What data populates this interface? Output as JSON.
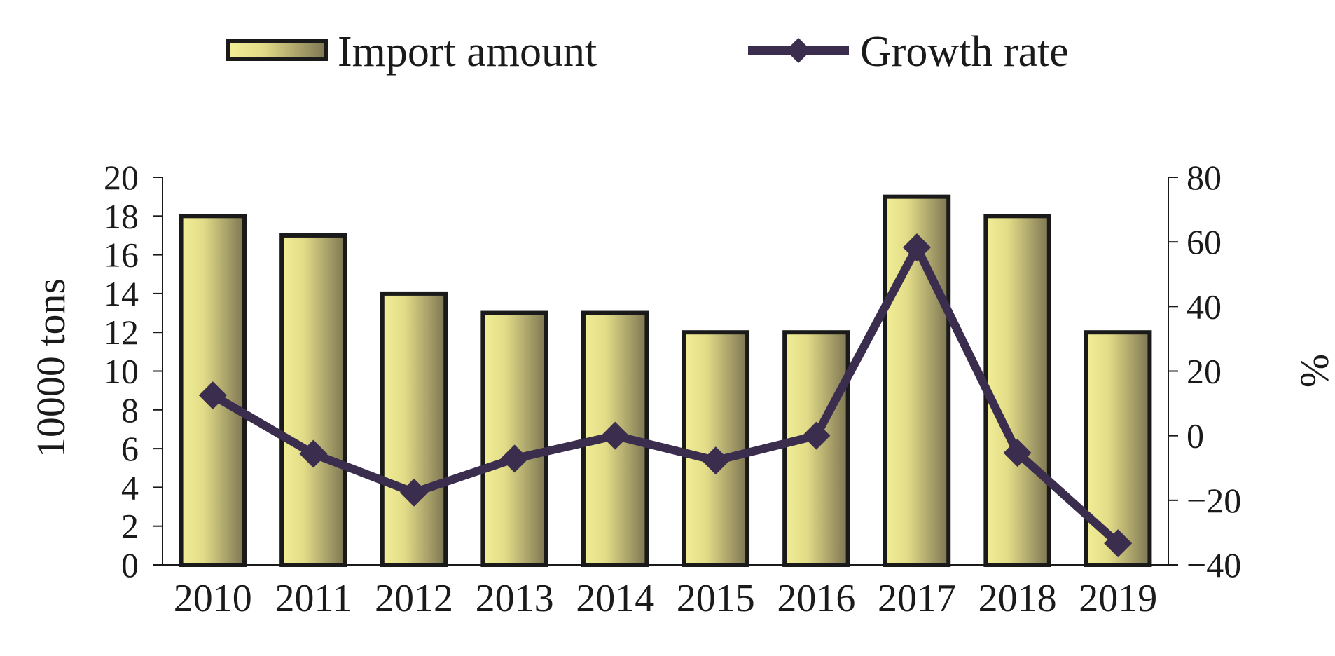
{
  "chart_data": {
    "type": "bar",
    "categories": [
      "2010",
      "2011",
      "2012",
      "2013",
      "2014",
      "2015",
      "2016",
      "2017",
      "2018",
      "2019"
    ],
    "series": [
      {
        "name": "Import amount",
        "type": "bar",
        "axis": "left",
        "values": [
          18,
          17,
          14,
          13,
          13,
          12,
          12,
          19,
          18,
          12
        ],
        "color_light": "#f2ee96",
        "color_dark": "#7d7552",
        "edge": "#1a1a1a"
      },
      {
        "name": "Growth rate",
        "type": "line",
        "axis": "right",
        "marker": "diamond",
        "values": [
          12.5,
          -5.6,
          -17.6,
          -7.1,
          0,
          -7.7,
          0,
          58.3,
          -5.3,
          -33.3
        ],
        "color": "#3b2d4e"
      }
    ],
    "ylabel": "10000 tons",
    "y2label": "%",
    "ylim": [
      0,
      20
    ],
    "y2lim": [
      -40,
      80
    ],
    "yticks": [
      "0",
      "2",
      "4",
      "6",
      "8",
      "10",
      "12",
      "14",
      "16",
      "18",
      "20"
    ],
    "y2ticks": [
      "−40",
      "−20",
      "0",
      "20",
      "40",
      "60",
      "80"
    ],
    "legend_position": "top-center",
    "grid": false
  }
}
